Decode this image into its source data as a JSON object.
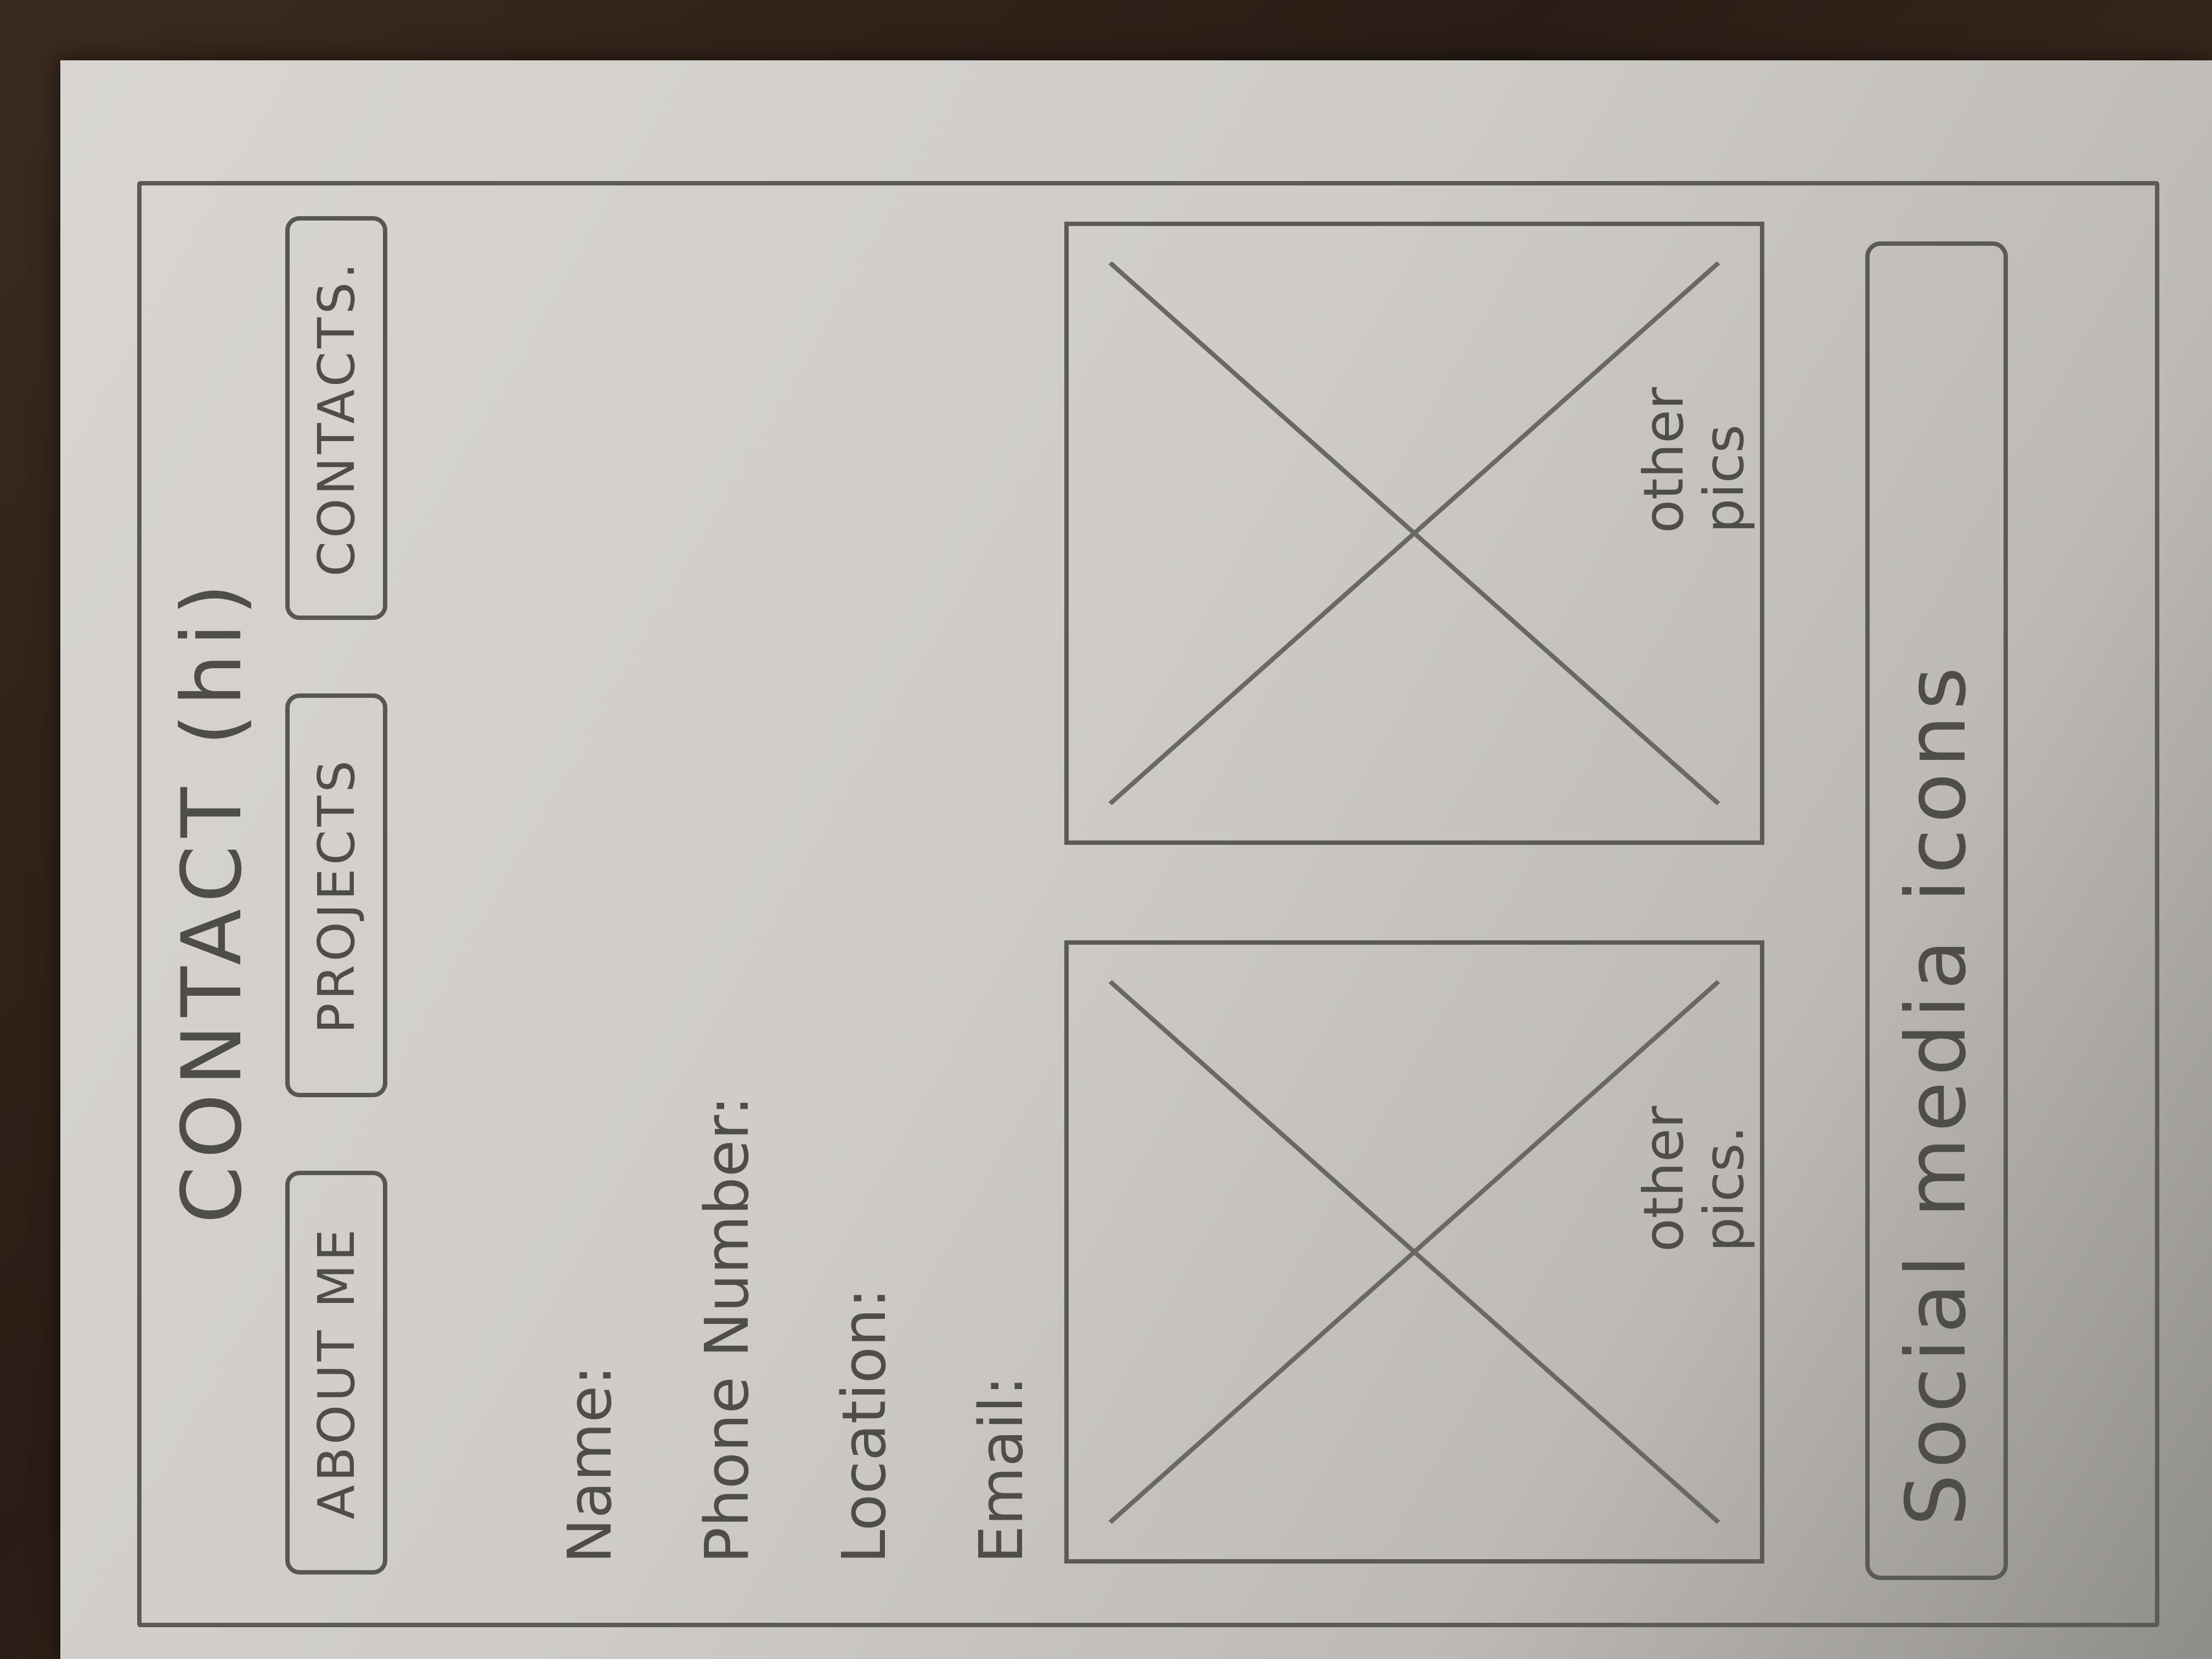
{
  "page": {
    "title": "CONTACT (hi)"
  },
  "nav": {
    "items": [
      {
        "label": "ABOUT ME"
      },
      {
        "label": "PROJECTS"
      },
      {
        "label": "CONTACTS."
      }
    ]
  },
  "contact_fields": [
    {
      "label": "Name:"
    },
    {
      "label": "Phone Number:"
    },
    {
      "label": "Location:"
    },
    {
      "label": "Email:"
    }
  ],
  "pictures": [
    {
      "label": "other pics."
    },
    {
      "label": "other pics"
    }
  ],
  "footer": {
    "social_label": "Social media icons"
  }
}
